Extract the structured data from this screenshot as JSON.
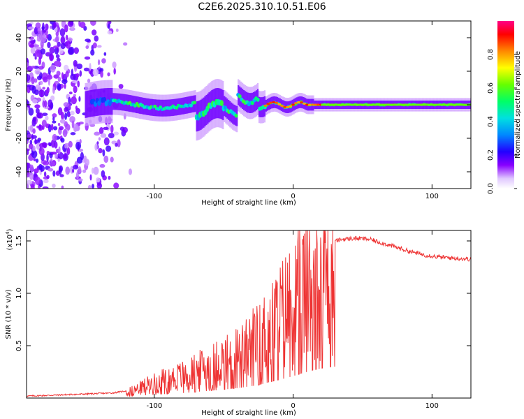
{
  "title": "C2E6.2025.310.10.51.E06",
  "colors": {
    "snr_line": "#ee3333",
    "background": "#ffffff",
    "frame": "#000000"
  },
  "chart_data": [
    {
      "type": "heatmap",
      "title": "C2E6.2025.310.10.51.E06",
      "xlabel": "Height of straight line (km)",
      "ylabel": "Frequency (Hz)",
      "xlim": [
        -192,
        128
      ],
      "ylim": [
        -50,
        50
      ],
      "xticks": [
        -100,
        0,
        100
      ],
      "yticks": [
        -40,
        -20,
        0,
        20,
        40
      ],
      "colorbar": {
        "label": "Normalized spectral amplitude",
        "range": [
          0,
          1
        ],
        "ticks": [
          0.0,
          0.2,
          0.4,
          0.6,
          0.8
        ]
      },
      "description_points": [
        {
          "x": -180,
          "noise": "high"
        },
        {
          "x": -120,
          "noise_end": true
        },
        {
          "x": -60,
          "spread_hz": 12
        },
        {
          "x": 20,
          "narrow_band": true
        },
        {
          "x": 128,
          "narrow_band": true
        }
      ]
    },
    {
      "type": "line",
      "xlabel": "Height of straight line (km)",
      "ylabel": "SNR (10 * v/v)",
      "yscale_label": "(x10",
      "yscale_exp": "4",
      "yscale_close": ")",
      "xlim": [
        -192,
        128
      ],
      "ylim": [
        0,
        1.6
      ],
      "xticks": [
        -100,
        0,
        100
      ],
      "yticks": [
        0.5,
        1.0,
        1.5
      ],
      "ytick_labels": [
        "0.5",
        "1.0",
        "1.5"
      ],
      "series": [
        {
          "name": "SNR",
          "x": [
            -192,
            -170,
            -150,
            -130,
            -115,
            -105,
            -95,
            -85,
            -75,
            -65,
            -55,
            -45,
            -35,
            -25,
            -15,
            -5,
            5,
            15,
            25,
            35,
            45,
            55,
            65,
            75,
            85,
            95,
            105,
            115,
            128
          ],
          "y": [
            0.02,
            0.03,
            0.04,
            0.05,
            0.08,
            0.14,
            0.18,
            0.22,
            0.26,
            0.32,
            0.38,
            0.44,
            0.52,
            0.62,
            0.8,
            0.95,
            1.15,
            1.35,
            1.48,
            1.52,
            1.53,
            1.52,
            1.48,
            1.44,
            1.4,
            1.37,
            1.35,
            1.34,
            1.33
          ]
        }
      ]
    }
  ]
}
